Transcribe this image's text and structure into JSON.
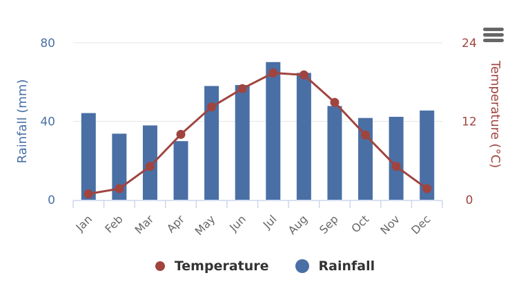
{
  "chart_data": {
    "type": "bar+line",
    "categories": [
      "Jan",
      "Feb",
      "Mar",
      "Apr",
      "May",
      "Jun",
      "Jul",
      "Aug",
      "Sep",
      "Oct",
      "Nov",
      "Dec"
    ],
    "series": [
      {
        "name": "Rainfall",
        "type": "bar",
        "axis": "left",
        "color": "#4a6fa5",
        "values": [
          44.2,
          33.7,
          37.9,
          29.9,
          58.0,
          58.5,
          70.2,
          64.7,
          47.8,
          41.7,
          42.3,
          45.5
        ]
      },
      {
        "name": "Temperature",
        "type": "line",
        "axis": "right",
        "color": "#a0443f",
        "values": [
          0.9,
          1.7,
          5.1,
          10.0,
          14.2,
          17.0,
          19.4,
          19.1,
          14.9,
          9.9,
          5.1,
          1.7
        ]
      }
    ],
    "y_left": {
      "label": "Rainfall (mm)",
      "range": [
        0,
        80
      ],
      "ticks": [
        "0",
        "40",
        "80"
      ],
      "color": "#4a6fa5"
    },
    "y_right": {
      "label": "Temperature (°C)",
      "range": [
        0,
        24
      ],
      "ticks": [
        "0",
        "12",
        "24"
      ],
      "color": "#a0443f"
    },
    "grid": true,
    "legend": {
      "position": "bottom",
      "items": [
        "Temperature",
        "Rainfall"
      ]
    }
  }
}
